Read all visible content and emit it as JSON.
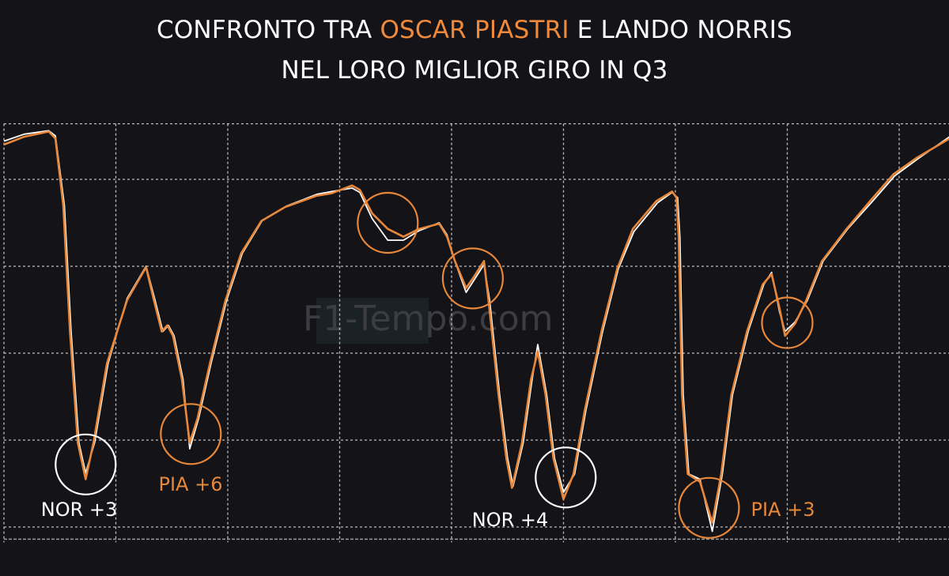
{
  "title": {
    "line1_prefix": "CONFRONTO TRA ",
    "line1_highlight": "OSCAR PIASTRI",
    "line1_suffix": " E LANDO NORRIS",
    "line2": "NEL LORO MIGLIOR GIRO IN Q3"
  },
  "watermark": "F1-Tempo.com",
  "colors": {
    "background": "#141418",
    "PIA": "#e8873a",
    "NOR": "#ffffff",
    "grid": "#bfbfbf",
    "watermark": "#3b3d42"
  },
  "chart_data": {
    "type": "line",
    "title": "CONFRONTO TRA OSCAR PIASTRI E LANDO NORRIS NEL LORO MIGLIOR GIRO IN Q3",
    "xlabel": "",
    "ylabel": "",
    "grid": true,
    "xlim": [
      0,
      8.45
    ],
    "ylim": [
      -0.14,
      4.64
    ],
    "x_gridlines": [
      0,
      1,
      2,
      3,
      4,
      5,
      6,
      7,
      8
    ],
    "y_gridlines": [
      0,
      1,
      2,
      3,
      4,
      4.64
    ],
    "series": [
      {
        "key": "PIA",
        "color": "#e8873a",
        "points": [
          [
            0,
            4.4
          ],
          [
            0.18,
            4.49
          ],
          [
            0.4,
            4.55
          ],
          [
            0.46,
            4.47
          ],
          [
            0.53,
            3.7
          ],
          [
            0.59,
            2.25
          ],
          [
            0.66,
            0.97
          ],
          [
            0.73,
            0.55
          ],
          [
            0.8,
            0.97
          ],
          [
            0.92,
            1.88
          ],
          [
            1.1,
            2.61
          ],
          [
            1.27,
            2.99
          ],
          [
            1.34,
            2.61
          ],
          [
            1.41,
            2.25
          ],
          [
            1.46,
            2.32
          ],
          [
            1.51,
            2.2
          ],
          [
            1.59,
            1.7
          ],
          [
            1.66,
            0.97
          ],
          [
            1.73,
            1.25
          ],
          [
            1.84,
            1.88
          ],
          [
            1.98,
            2.61
          ],
          [
            2.12,
            3.15
          ],
          [
            2.3,
            3.52
          ],
          [
            2.51,
            3.68
          ],
          [
            2.79,
            3.81
          ],
          [
            2.93,
            3.84
          ],
          [
            3.11,
            3.93
          ],
          [
            3.18,
            3.88
          ],
          [
            3.29,
            3.61
          ],
          [
            3.43,
            3.43
          ],
          [
            3.57,
            3.34
          ],
          [
            3.71,
            3.43
          ],
          [
            3.89,
            3.49
          ],
          [
            3.96,
            3.34
          ],
          [
            4.03,
            3.06
          ],
          [
            4.13,
            2.75
          ],
          [
            4.2,
            2.88
          ],
          [
            4.29,
            3.06
          ],
          [
            4.33,
            2.61
          ],
          [
            4.42,
            1.52
          ],
          [
            4.49,
            0.79
          ],
          [
            4.54,
            0.45
          ],
          [
            4.63,
            0.97
          ],
          [
            4.71,
            1.7
          ],
          [
            4.77,
            2.02
          ],
          [
            4.84,
            1.52
          ],
          [
            4.91,
            0.79
          ],
          [
            5.0,
            0.32
          ],
          [
            5.09,
            0.61
          ],
          [
            5.19,
            1.34
          ],
          [
            5.34,
            2.25
          ],
          [
            5.48,
            2.97
          ],
          [
            5.62,
            3.43
          ],
          [
            5.83,
            3.75
          ],
          [
            5.97,
            3.86
          ],
          [
            6.01,
            3.79
          ],
          [
            6.03,
            3.34
          ],
          [
            6.06,
            1.52
          ],
          [
            6.11,
            0.61
          ],
          [
            6.22,
            0.52
          ],
          [
            6.33,
            0.05
          ],
          [
            6.41,
            0.61
          ],
          [
            6.5,
            1.52
          ],
          [
            6.64,
            2.25
          ],
          [
            6.78,
            2.79
          ],
          [
            6.86,
            2.91
          ],
          [
            6.93,
            2.52
          ],
          [
            6.98,
            2.2
          ],
          [
            7.07,
            2.34
          ],
          [
            7.17,
            2.61
          ],
          [
            7.31,
            3.06
          ],
          [
            7.53,
            3.43
          ],
          [
            7.74,
            3.75
          ],
          [
            7.95,
            4.06
          ],
          [
            8.16,
            4.25
          ],
          [
            8.45,
            4.47
          ]
        ]
      },
      {
        "key": "NOR",
        "color": "#ffffff",
        "points": [
          [
            0,
            4.44
          ],
          [
            0.18,
            4.52
          ],
          [
            0.4,
            4.56
          ],
          [
            0.46,
            4.5
          ],
          [
            0.54,
            3.7
          ],
          [
            0.6,
            2.25
          ],
          [
            0.67,
            0.97
          ],
          [
            0.73,
            0.62
          ],
          [
            0.81,
            0.97
          ],
          [
            0.93,
            1.88
          ],
          [
            1.1,
            2.63
          ],
          [
            1.27,
            3.0
          ],
          [
            1.35,
            2.61
          ],
          [
            1.42,
            2.25
          ],
          [
            1.47,
            2.32
          ],
          [
            1.52,
            2.2
          ],
          [
            1.6,
            1.7
          ],
          [
            1.66,
            0.9
          ],
          [
            1.74,
            1.25
          ],
          [
            1.85,
            1.88
          ],
          [
            1.99,
            2.61
          ],
          [
            2.13,
            3.15
          ],
          [
            2.31,
            3.53
          ],
          [
            2.52,
            3.69
          ],
          [
            2.8,
            3.83
          ],
          [
            2.93,
            3.86
          ],
          [
            3.11,
            3.9
          ],
          [
            3.18,
            3.85
          ],
          [
            3.29,
            3.55
          ],
          [
            3.43,
            3.3
          ],
          [
            3.57,
            3.3
          ],
          [
            3.71,
            3.41
          ],
          [
            3.89,
            3.5
          ],
          [
            3.96,
            3.36
          ],
          [
            4.03,
            3.06
          ],
          [
            4.13,
            2.7
          ],
          [
            4.2,
            2.84
          ],
          [
            4.29,
            3.02
          ],
          [
            4.34,
            2.61
          ],
          [
            4.43,
            1.52
          ],
          [
            4.5,
            0.79
          ],
          [
            4.55,
            0.47
          ],
          [
            4.64,
            0.97
          ],
          [
            4.72,
            1.7
          ],
          [
            4.77,
            2.1
          ],
          [
            4.85,
            1.52
          ],
          [
            4.92,
            0.79
          ],
          [
            5.0,
            0.4
          ],
          [
            5.1,
            0.61
          ],
          [
            5.2,
            1.34
          ],
          [
            5.35,
            2.25
          ],
          [
            5.49,
            2.97
          ],
          [
            5.63,
            3.4
          ],
          [
            5.84,
            3.73
          ],
          [
            5.97,
            3.85
          ],
          [
            6.02,
            3.79
          ],
          [
            6.04,
            3.34
          ],
          [
            6.07,
            1.52
          ],
          [
            6.12,
            0.61
          ],
          [
            6.22,
            0.55
          ],
          [
            6.33,
            -0.05
          ],
          [
            6.42,
            0.61
          ],
          [
            6.51,
            1.52
          ],
          [
            6.65,
            2.25
          ],
          [
            6.79,
            2.79
          ],
          [
            6.86,
            2.93
          ],
          [
            6.93,
            2.48
          ],
          [
            6.98,
            2.25
          ],
          [
            7.07,
            2.36
          ],
          [
            7.18,
            2.61
          ],
          [
            7.32,
            3.06
          ],
          [
            7.54,
            3.43
          ],
          [
            7.75,
            3.73
          ],
          [
            7.96,
            4.04
          ],
          [
            8.17,
            4.24
          ],
          [
            8.45,
            4.49
          ]
        ]
      }
    ],
    "annotations": [
      {
        "label": "NOR +3",
        "driver": "NOR",
        "color": "#ffffff",
        "at": [
          0.73,
          0.72
        ]
      },
      {
        "label": "PIA +6",
        "driver": "PIA",
        "color": "#e8873a",
        "at": [
          1.67,
          1.07
        ]
      },
      {
        "label": "",
        "driver": "PIA",
        "color": "#e8873a",
        "at": [
          3.43,
          3.5
        ]
      },
      {
        "label": "",
        "driver": "PIA",
        "color": "#e8873a",
        "at": [
          4.19,
          2.86
        ]
      },
      {
        "label": "NOR +4",
        "driver": "NOR",
        "color": "#ffffff",
        "at": [
          5.02,
          0.57
        ]
      },
      {
        "label": "PIA +3",
        "driver": "PIA",
        "color": "#e8873a",
        "at": [
          6.3,
          0.22
        ]
      },
      {
        "label": "",
        "driver": "PIA",
        "color": "#e8873a",
        "at": [
          7.0,
          2.35
        ]
      }
    ]
  }
}
